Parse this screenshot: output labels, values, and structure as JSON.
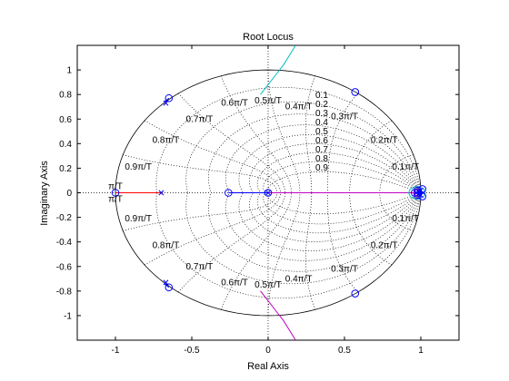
{
  "chart_data": {
    "type": "scatter",
    "title": "Root Locus",
    "xlabel": "Real Axis",
    "ylabel": "Imaginary Axis",
    "xlim": [
      -1.25,
      1.25
    ],
    "ylim": [
      -1.2,
      1.2
    ],
    "xticks": [
      -1,
      -0.5,
      0,
      0.5,
      1
    ],
    "xtick_labels": [
      "-1",
      "-0.5",
      "0",
      "0.5",
      "1"
    ],
    "yticks": [
      1,
      0.8,
      0.6,
      0.4,
      0.2,
      0,
      -0.2,
      -0.4,
      -0.6,
      -0.8,
      -1
    ],
    "ytick_labels": [
      "1",
      "0.8",
      "0.6",
      "0.4",
      "0.2",
      "0",
      "-0.2",
      "-0.4",
      "-0.6",
      "-0.8",
      "-1"
    ],
    "grid": "zgrid",
    "unit_circle": true,
    "damping_ratios": [
      0.1,
      0.2,
      0.3,
      0.4,
      0.5,
      0.6,
      0.7,
      0.8,
      0.9
    ],
    "damping_labels": [
      "0.1",
      "0.2",
      "0.3",
      "0.4",
      "0.5",
      "0.6",
      "0.7",
      "0.8",
      "0.9"
    ],
    "wn_labels": [
      {
        "text": "0.1π/T",
        "upper": [
          0.9,
          0.21
        ],
        "lower": [
          0.9,
          -0.21
        ]
      },
      {
        "text": "0.2π/T",
        "upper": [
          0.76,
          0.43
        ],
        "lower": [
          0.76,
          -0.43
        ]
      },
      {
        "text": "0.3π/T",
        "upper": [
          0.5,
          0.62
        ],
        "lower": [
          0.5,
          -0.62
        ]
      },
      {
        "text": "0.4π/T",
        "upper": [
          0.2,
          0.7
        ],
        "lower": [
          0.2,
          -0.7
        ]
      },
      {
        "text": "0.5π/T",
        "upper": [
          0.0,
          0.75
        ],
        "lower": [
          0.0,
          -0.75
        ]
      },
      {
        "text": "0.6π/T",
        "upper": [
          -0.22,
          0.73
        ],
        "lower": [
          -0.22,
          -0.73
        ]
      },
      {
        "text": "0.7π/T",
        "upper": [
          -0.45,
          0.6
        ],
        "lower": [
          -0.45,
          -0.6
        ]
      },
      {
        "text": "0.8π/T",
        "upper": [
          -0.67,
          0.43
        ],
        "lower": [
          -0.67,
          -0.43
        ]
      },
      {
        "text": "0.9π/T",
        "upper": [
          -0.85,
          0.21
        ],
        "lower": [
          -0.85,
          -0.21
        ]
      },
      {
        "text": "π/T",
        "upper": [
          -1.0,
          0.05
        ],
        "lower": [
          -1.0,
          -0.05
        ]
      }
    ],
    "zeros": [
      [
        -0.65,
        0.77
      ],
      [
        -0.65,
        -0.77
      ],
      [
        0.57,
        0.82
      ],
      [
        0.57,
        -0.82
      ],
      [
        -1.0,
        0.0
      ],
      [
        -0.26,
        0.0
      ],
      [
        0.0,
        0.0
      ],
      [
        0.96,
        0.0
      ],
      [
        0.98,
        0.02
      ],
      [
        0.98,
        -0.02
      ],
      [
        1.01,
        0.03
      ],
      [
        1.01,
        -0.03
      ]
    ],
    "poles": [
      [
        -0.67,
        0.73
      ],
      [
        -0.67,
        -0.73
      ],
      [
        -0.7,
        0.0
      ],
      [
        0.0,
        0.0
      ],
      [
        0.97,
        0.0
      ],
      [
        0.99,
        0.01
      ],
      [
        0.99,
        -0.01
      ],
      [
        1.0,
        0.02
      ],
      [
        1.0,
        -0.02
      ]
    ],
    "series": [
      {
        "color": "#ff0000",
        "x": [
          -1.0,
          -0.7
        ],
        "y": [
          0.0,
          0.0
        ]
      },
      {
        "color": "#0000ff",
        "x": [
          -0.68,
          -0.67,
          -0.66,
          -0.65
        ],
        "y": [
          0.74,
          0.75,
          0.76,
          0.77
        ]
      },
      {
        "color": "#0000ff",
        "x": [
          -0.68,
          -0.67,
          -0.66,
          -0.65
        ],
        "y": [
          -0.74,
          -0.75,
          -0.76,
          -0.77
        ]
      },
      {
        "color": "#00bfbf",
        "x": [
          -0.05,
          0.0,
          0.05,
          0.1,
          0.14,
          0.18
        ],
        "y": [
          0.8,
          0.88,
          0.96,
          1.04,
          1.12,
          1.2
        ]
      },
      {
        "color": "#bf00bf",
        "x": [
          -0.05,
          0.0,
          0.05,
          0.1,
          0.14,
          0.18
        ],
        "y": [
          -0.8,
          -0.88,
          -0.96,
          -1.04,
          -1.12,
          -1.2
        ]
      },
      {
        "color": "#0000ff",
        "x": [
          -0.26,
          0.0,
          0.96
        ],
        "y": [
          0.0,
          0.0,
          0.0
        ]
      },
      {
        "color": "#bf00bf",
        "x": [
          0.0,
          0.96
        ],
        "y": [
          0.0,
          0.0
        ]
      },
      {
        "color": "#00bfbf",
        "x": [
          0.92,
          0.93,
          0.96,
          0.99,
          1.02,
          1.03,
          1.02,
          0.99,
          0.96,
          0.93,
          0.92
        ],
        "y": [
          0.0,
          0.03,
          0.05,
          0.05,
          0.03,
          0.0,
          -0.03,
          -0.05,
          -0.05,
          -0.03,
          0.0
        ]
      },
      {
        "color": "#bf00bf",
        "x": [
          0.95,
          0.96,
          0.98,
          1.0,
          1.01,
          1.0,
          0.98,
          0.96,
          0.95
        ],
        "y": [
          0.0,
          0.02,
          0.03,
          0.02,
          0.0,
          -0.02,
          -0.03,
          -0.02,
          0.0
        ]
      }
    ],
    "colors": {
      "axes": "#000000",
      "grid": "#000000",
      "zero_pole": "#0000ff",
      "circle": "#000000"
    }
  }
}
